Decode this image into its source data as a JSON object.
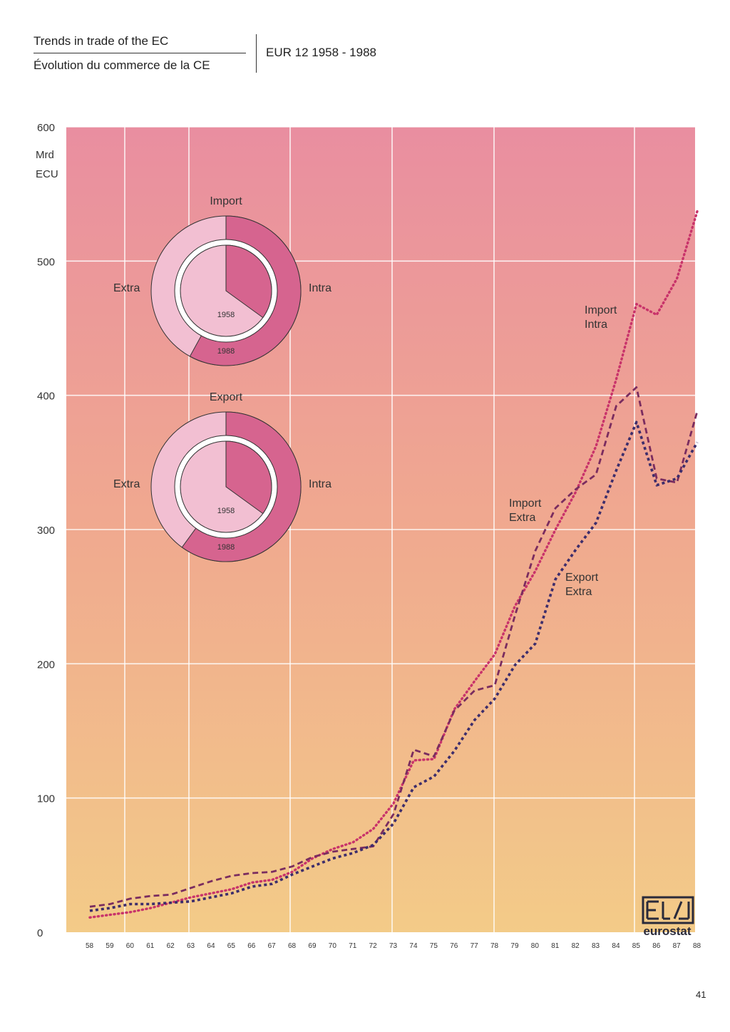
{
  "header": {
    "title_en": "Trends in trade of the EC",
    "title_fr": "Évolution du commerce de la CE",
    "subtitle": "EUR 12 1958 - 1988"
  },
  "page_number": "41",
  "logo_text": "eurostat",
  "colors": {
    "import_intra": "#c8336a",
    "import_extra": "#7a2c5f",
    "export_extra": "#3d2d6b",
    "bg_top": "#e98ea0",
    "bg_bottom": "#f1c889",
    "pie_intra": "#d6648f",
    "pie_extra": "#f2bfd2"
  },
  "chart_data": [
    {
      "type": "line",
      "ylabel_unit": [
        "Mrd",
        "ECU"
      ],
      "ylim": [
        0,
        600
      ],
      "yticks": [
        0,
        100,
        200,
        300,
        400,
        500,
        600
      ],
      "x": [
        "58",
        "59",
        "60",
        "61",
        "62",
        "63",
        "64",
        "65",
        "66",
        "67",
        "68",
        "69",
        "70",
        "71",
        "72",
        "73",
        "74",
        "75",
        "76",
        "77",
        "78",
        "79",
        "80",
        "81",
        "82",
        "83",
        "84",
        "85",
        "86",
        "87",
        "88"
      ],
      "grid": true,
      "series": [
        {
          "name": "Import Intra",
          "label_lines": [
            "Import",
            "Intra"
          ],
          "style": "dotted",
          "values": [
            11,
            13,
            15,
            18,
            22,
            26,
            29,
            32,
            37,
            39,
            45,
            55,
            62,
            67,
            77,
            96,
            128,
            129,
            166,
            187,
            207,
            243,
            269,
            300,
            328,
            362,
            412,
            468,
            460,
            487,
            537
          ]
        },
        {
          "name": "Import Extra",
          "label_lines": [
            "Import",
            "Extra"
          ],
          "style": "dashed",
          "values": [
            19,
            21,
            25,
            27,
            28,
            33,
            38,
            42,
            44,
            45,
            49,
            56,
            60,
            62,
            64,
            88,
            136,
            131,
            165,
            180,
            184,
            236,
            284,
            316,
            330,
            341,
            392,
            406,
            338,
            335,
            388
          ]
        },
        {
          "name": "Export Extra",
          "label_lines": [
            "Export",
            "Extra"
          ],
          "style": "dotted-dashed",
          "values": [
            16,
            18,
            21,
            21,
            22,
            23,
            26,
            29,
            34,
            36,
            43,
            49,
            55,
            59,
            65,
            81,
            108,
            116,
            135,
            158,
            174,
            199,
            215,
            263,
            285,
            305,
            344,
            380,
            333,
            338,
            365
          ]
        }
      ],
      "line_label_positions_note": "labels attach to series"
    },
    {
      "type": "pie",
      "title": "Import",
      "ring_labels": {
        "inner": "1958",
        "outer": "1988"
      },
      "slice_labels": [
        "Intra",
        "Extra"
      ],
      "inner_1958": {
        "Intra": 35,
        "Extra": 65
      },
      "outer_1988": {
        "Intra": 58,
        "Extra": 42
      }
    },
    {
      "type": "pie",
      "title": "Export",
      "ring_labels": {
        "inner": "1958",
        "outer": "1988"
      },
      "slice_labels": [
        "Intra",
        "Extra"
      ],
      "inner_1958": {
        "Intra": 35,
        "Extra": 65
      },
      "outer_1988": {
        "Intra": 60,
        "Extra": 40
      }
    }
  ]
}
